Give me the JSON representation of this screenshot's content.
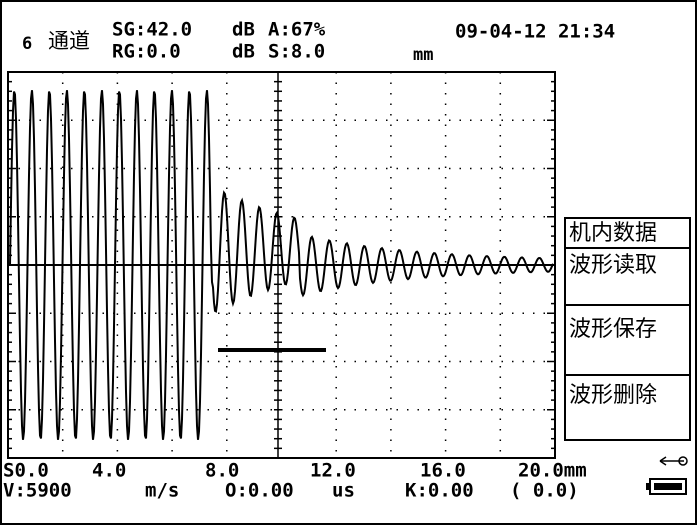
{
  "header": {
    "channel_number": "6",
    "channel_label": "通道",
    "sg": "SG:42.0",
    "sg_unit": "dB",
    "a": "A:67%",
    "rg": "RG:0.0",
    "rg_unit": "dB",
    "s": "S:8.0",
    "s_unit": "mm",
    "datetime": "09-04-12 21:34"
  },
  "scale": [
    "S0.0",
    "4.0",
    "8.0",
    "12.0",
    "16.0",
    "20.0mm"
  ],
  "status": {
    "v": "V:5900",
    "v_unit": "m/s",
    "o": "O:0.00",
    "o_unit": "us",
    "k": "K:0.00",
    "k_paren": "( 0.0)"
  },
  "menu": [
    "机内数据",
    "波形读取",
    "波形保存",
    "波形删除"
  ]
}
